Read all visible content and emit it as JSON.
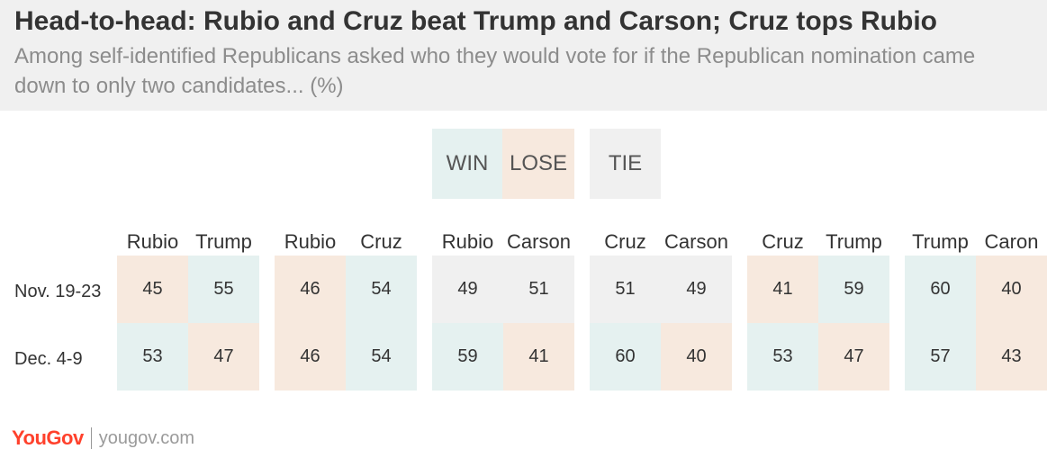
{
  "header": {
    "title": "Head-to-head: Rubio and Cruz beat Trump and Carson; Cruz tops Rubio",
    "subtitle": "Among self-identified Republicans asked who they would vote for if the Republican nomination came down to only two candidates... (%)"
  },
  "legend": {
    "win": "WIN",
    "lose": "LOSE",
    "tie": "TIE"
  },
  "colors": {
    "win": "#e5f1f0",
    "lose": "#f7e9de",
    "tie": "#f0f0f0",
    "header_bg": "#f0f0f0",
    "logo": "#ff412c"
  },
  "rows": [
    "Nov. 19-23",
    "Dec. 4-9"
  ],
  "footer": {
    "logo": "YouGov",
    "url": "yougov.com"
  },
  "chart_data": {
    "type": "table",
    "title": "Head-to-head: Rubio and Cruz beat Trump and Carson; Cruz tops Rubio",
    "row_labels": [
      "Nov. 19-23",
      "Dec. 4-9"
    ],
    "matchups": [
      {
        "candidates": [
          "Rubio",
          "Trump"
        ],
        "values": [
          [
            45,
            55
          ],
          [
            53,
            47
          ]
        ],
        "status": [
          [
            "lose",
            "win"
          ],
          [
            "win",
            "lose"
          ]
        ]
      },
      {
        "candidates": [
          "Rubio",
          "Cruz"
        ],
        "values": [
          [
            46,
            54
          ],
          [
            46,
            54
          ]
        ],
        "status": [
          [
            "lose",
            "win"
          ],
          [
            "lose",
            "win"
          ]
        ]
      },
      {
        "candidates": [
          "Rubio",
          "Carson"
        ],
        "values": [
          [
            49,
            51
          ],
          [
            59,
            41
          ]
        ],
        "status": [
          [
            "tie",
            "tie"
          ],
          [
            "win",
            "lose"
          ]
        ]
      },
      {
        "candidates": [
          "Cruz",
          "Carson"
        ],
        "values": [
          [
            51,
            49
          ],
          [
            60,
            40
          ]
        ],
        "status": [
          [
            "tie",
            "tie"
          ],
          [
            "win",
            "lose"
          ]
        ]
      },
      {
        "candidates": [
          "Cruz",
          "Trump"
        ],
        "values": [
          [
            41,
            59
          ],
          [
            53,
            47
          ]
        ],
        "status": [
          [
            "lose",
            "win"
          ],
          [
            "win",
            "lose"
          ]
        ]
      },
      {
        "candidates": [
          "Trump",
          "Caron"
        ],
        "values": [
          [
            60,
            40
          ],
          [
            57,
            43
          ]
        ],
        "status": [
          [
            "win",
            "lose"
          ],
          [
            "win",
            "lose"
          ]
        ]
      }
    ]
  }
}
